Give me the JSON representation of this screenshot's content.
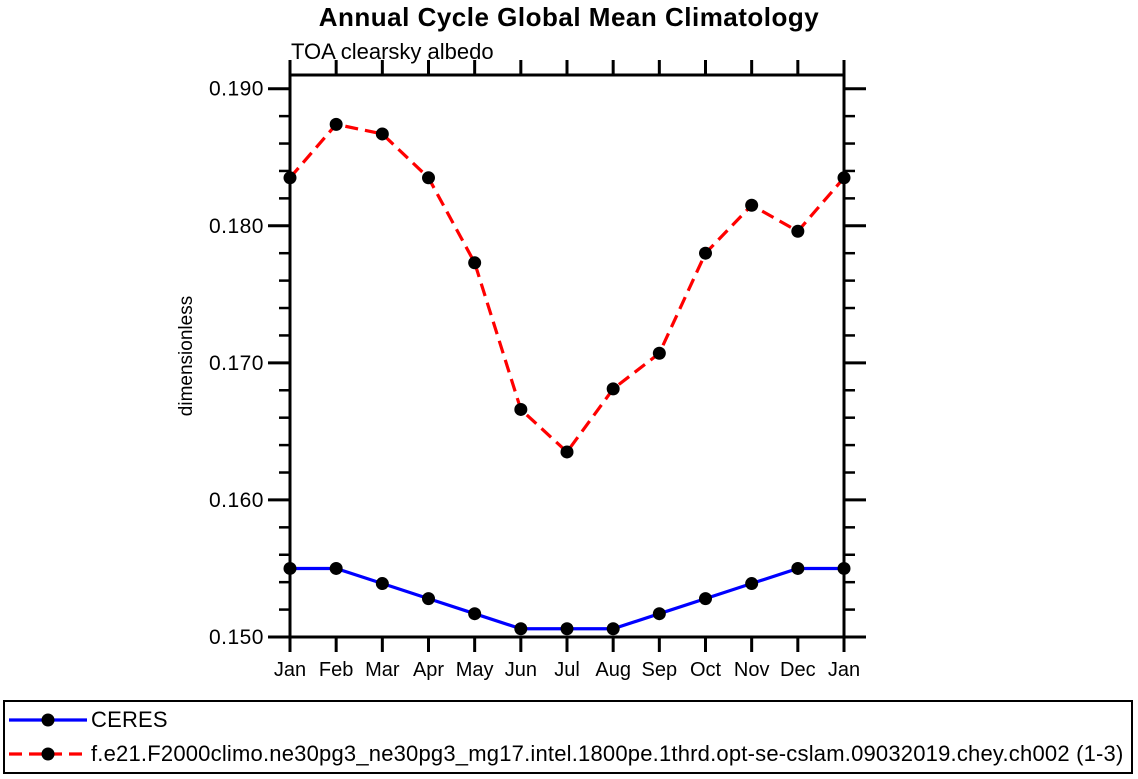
{
  "title": "Annual Cycle Global Mean Climatology",
  "subtitle": "TOA clearsky albedo",
  "chart_data": {
    "type": "line",
    "title": "Annual Cycle Global Mean Climatology",
    "subtitle": "TOA clearsky albedo",
    "xlabel": "",
    "ylabel": "dimensionless",
    "categories": [
      "Jan",
      "Feb",
      "Mar",
      "Apr",
      "May",
      "Jun",
      "Jul",
      "Aug",
      "Sep",
      "Oct",
      "Nov",
      "Dec",
      "Jan"
    ],
    "ylim": [
      0.15,
      0.191
    ],
    "yticks_major": [
      0.15,
      0.16,
      0.17,
      0.18,
      0.19
    ],
    "ytick_labels": [
      "0.150",
      "0.160",
      "0.170",
      "0.180",
      "0.190"
    ],
    "ytick_minor_step": 0.002,
    "grid": false,
    "legend_position": "bottom",
    "series": [
      {
        "name": "CERES",
        "color": "#0000ff",
        "line_style": "solid",
        "marker": "circle",
        "marker_color": "#000000",
        "values": [
          0.155,
          0.155,
          0.1539,
          0.1528,
          0.1517,
          0.1506,
          0.1506,
          0.1506,
          0.1517,
          0.1528,
          0.1539,
          0.155,
          0.155
        ]
      },
      {
        "name": "f.e21.F2000climo.ne30pg3_ne30pg3_mg17.intel.1800pe.1thrd.opt-se-cslam.09032019.chey.ch002 (1-3)",
        "color": "#ff0000",
        "line_style": "dashed",
        "marker": "circle",
        "marker_color": "#000000",
        "values": [
          0.1835,
          0.1874,
          0.1867,
          0.1835,
          0.1773,
          0.1666,
          0.1635,
          0.1681,
          0.1707,
          0.178,
          0.1815,
          0.1796,
          0.1835
        ]
      }
    ]
  },
  "colors": {
    "axis": "#000000",
    "background": "#ffffff",
    "ceres_line": "#0000ff",
    "model_line": "#ff0000",
    "marker": "#000000"
  }
}
